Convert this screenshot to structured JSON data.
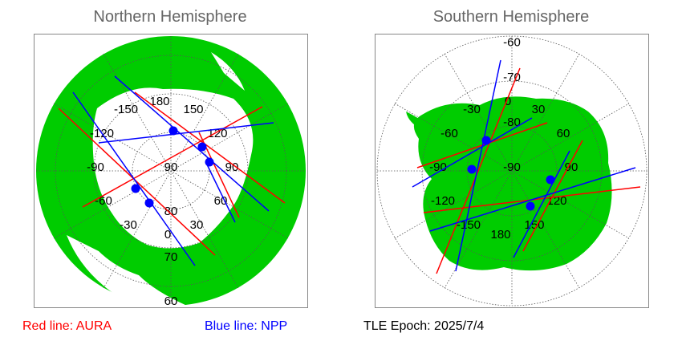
{
  "colors": {
    "aura": "#ff0000",
    "npp": "#0000ff",
    "land": "#00cc00",
    "ocean": "#ffffff",
    "grid": "#555555"
  },
  "north": {
    "title": "Northern Hemisphere",
    "lon_labels": [
      "180",
      "150",
      "120",
      "90",
      "60",
      "30",
      "0",
      "-30",
      "-60",
      "-90",
      "-120",
      "-150"
    ],
    "lat_labels": [
      "90",
      "80",
      "70",
      "60"
    ]
  },
  "south": {
    "title": "Southern Hemisphere",
    "lon_labels": [
      "0",
      "30",
      "60",
      "90",
      "120",
      "150",
      "180",
      "-150",
      "-120",
      "-90",
      "-60",
      "-30"
    ],
    "lat_labels": [
      "-90",
      "-80",
      "-70",
      "-60"
    ]
  },
  "legend": {
    "aura": "Red line: AURA",
    "npp": "Blue line: NPP",
    "epoch": "TLE Epoch: 2025/7/4"
  }
}
